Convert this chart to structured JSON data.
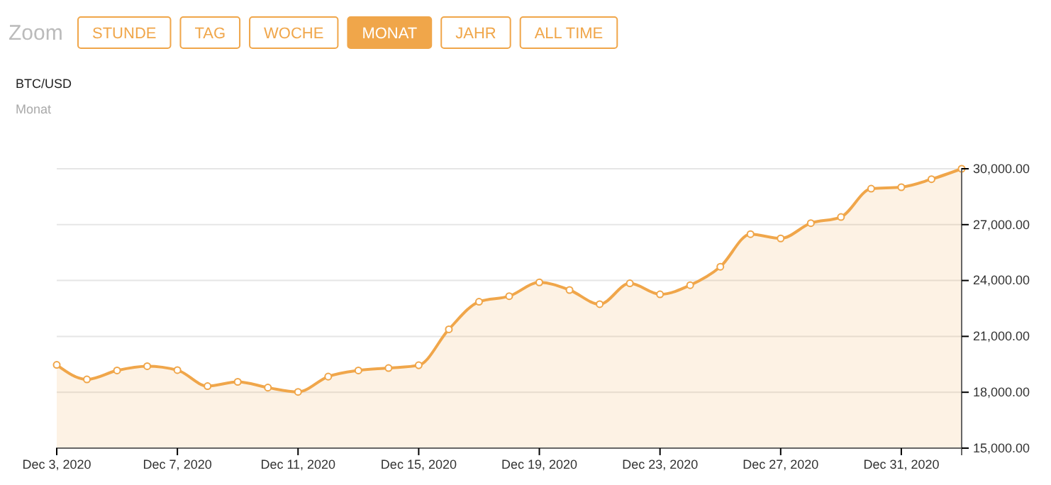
{
  "chart_data": {
    "type": "area",
    "title": "BTC/USD",
    "subtitle": "Monat",
    "annotations": [
      "Zoom",
      "STUNDE",
      "TAG",
      "WOCHE",
      "MONAT",
      "JAHR",
      "ALL TIME"
    ],
    "x": [
      "2020-12-03",
      "2020-12-04",
      "2020-12-05",
      "2020-12-06",
      "2020-12-07",
      "2020-12-08",
      "2020-12-09",
      "2020-12-10",
      "2020-12-11",
      "2020-12-12",
      "2020-12-13",
      "2020-12-14",
      "2020-12-15",
      "2020-12-16",
      "2020-12-17",
      "2020-12-18",
      "2020-12-19",
      "2020-12-20",
      "2020-12-21",
      "2020-12-22",
      "2020-12-23",
      "2020-12-24",
      "2020-12-25",
      "2020-12-26",
      "2020-12-27",
      "2020-12-28",
      "2020-12-29",
      "2020-12-30",
      "2020-12-31",
      "2021-01-01",
      "2021-01-02"
    ],
    "series": [
      {
        "color": "#f0a64a",
        "values": [
          19470,
          18690,
          19170,
          19400,
          19190,
          18330,
          18560,
          18250,
          18020,
          18840,
          19170,
          19300,
          19450,
          21380,
          22860,
          23160,
          23900,
          23490,
          22730,
          23850,
          23260,
          23750,
          24740,
          26490,
          26260,
          27080,
          27410,
          28930,
          29010,
          29440,
          30000
        ]
      }
    ],
    "xlim": [
      "2020-12-03",
      "2021-01-02"
    ],
    "xticks": [
      {
        "value": "2020-12-03",
        "label": "Dec 3, 2020"
      },
      {
        "value": "2020-12-07",
        "label": "Dec 7, 2020"
      },
      {
        "value": "2020-12-11",
        "label": "Dec 11, 2020"
      },
      {
        "value": "2020-12-15",
        "label": "Dec 15, 2020"
      },
      {
        "value": "2020-12-19",
        "label": "Dec 19, 2020"
      },
      {
        "value": "2020-12-23",
        "label": "Dec 23, 2020"
      },
      {
        "value": "2020-12-27",
        "label": "Dec 27, 2020"
      },
      {
        "value": "2020-12-31",
        "label": "Dec 31, 2020"
      }
    ],
    "ylim": [
      15000,
      30000
    ],
    "yticks": [
      {
        "value": 15000,
        "label": "15,000.00"
      },
      {
        "value": 18000,
        "label": "18,000.00"
      },
      {
        "value": 21000,
        "label": "21,000.00"
      },
      {
        "value": 24000,
        "label": "24,000.00"
      },
      {
        "value": 27000,
        "label": "27,000.00"
      },
      {
        "value": 30000,
        "label": "30,000.00"
      }
    ],
    "grid": "y",
    "marker": "circle"
  }
}
